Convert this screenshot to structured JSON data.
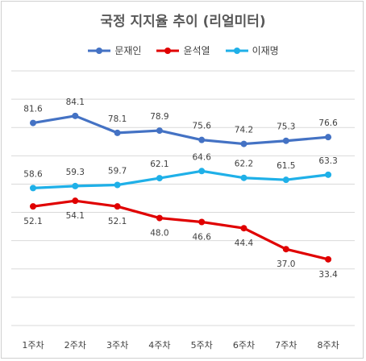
{
  "chart_data": {
    "type": "line",
    "title": "국정 지지율 추이 (리얼미터)",
    "categories": [
      "1주차",
      "2주차",
      "3주차",
      "4주차",
      "5주차",
      "6주차",
      "7주차",
      "8주차"
    ],
    "ylim": [
      10,
      100
    ],
    "grid": true,
    "legend_position": "top",
    "series": [
      {
        "name": "문재인",
        "color": "#4472c4",
        "values": [
          81.6,
          84.1,
          78.1,
          78.9,
          75.6,
          74.2,
          75.3,
          76.6
        ]
      },
      {
        "name": "윤석열",
        "color": "#e00000",
        "values": [
          52.1,
          54.1,
          52.1,
          48.0,
          46.6,
          44.4,
          37.0,
          33.4
        ]
      },
      {
        "name": "이재명",
        "color": "#1fb0e8",
        "values": [
          58.6,
          59.3,
          59.7,
          62.1,
          64.6,
          62.2,
          61.5,
          63.3
        ]
      }
    ]
  }
}
